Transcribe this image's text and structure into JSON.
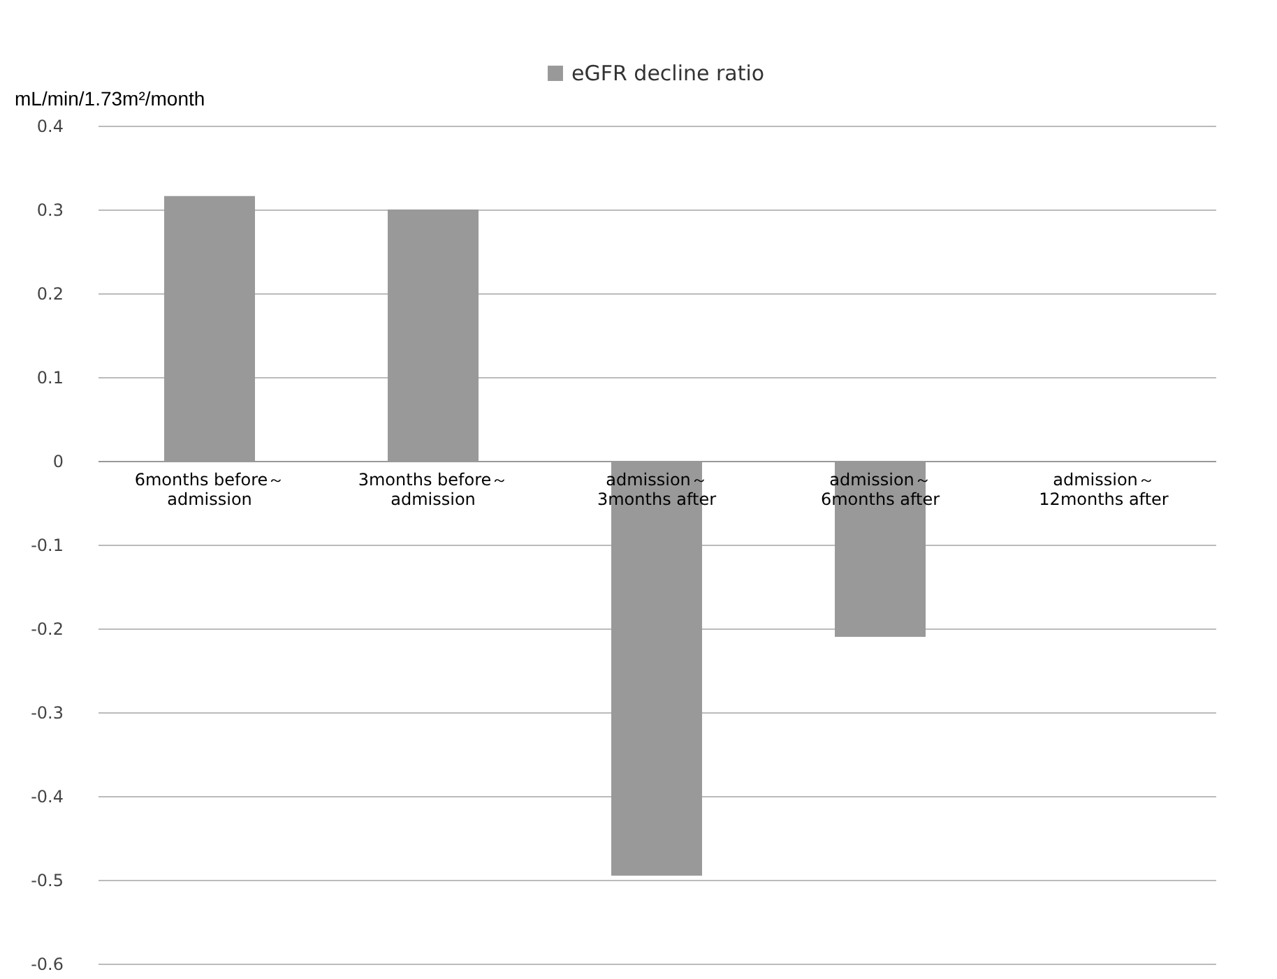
{
  "chart_data": {
    "type": "bar",
    "ylabel": "mL/min/1.73m²/month",
    "categories": [
      "6months before～\nadmission",
      "3months before～\nadmission",
      "admission～\n3months after",
      "admission～\n6months after",
      "admission～\n12months after"
    ],
    "series": [
      {
        "name": "eGFR decline ratio",
        "color": "#999999",
        "values": [
          0.316,
          0.3,
          -0.495,
          -0.21,
          0
        ]
      }
    ],
    "ylim": [
      -0.6,
      0.4
    ],
    "yticks": [
      -0.6,
      -0.5,
      -0.4,
      -0.3,
      -0.2,
      -0.1,
      0,
      0.1,
      0.2,
      0.3,
      0.4
    ],
    "grid": "y",
    "legend": "top"
  }
}
